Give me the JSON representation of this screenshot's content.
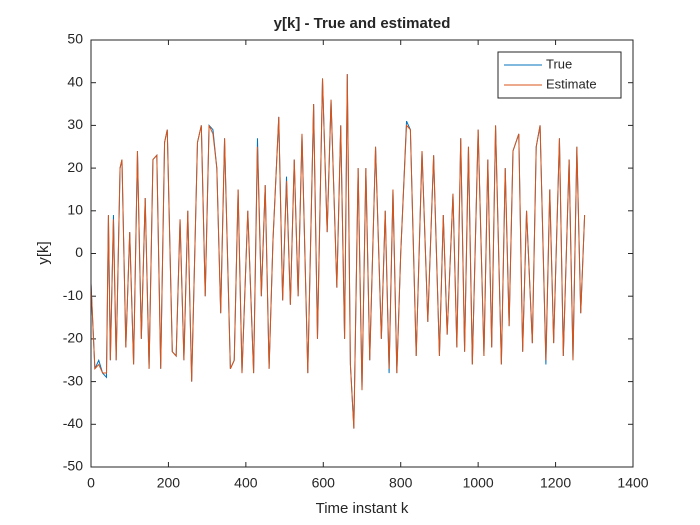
{
  "chart_data": {
    "type": "line",
    "title": "y[k] - True and estimated",
    "xlabel": "Time instant k",
    "ylabel": "y[k]",
    "x": [
      0,
      10,
      20,
      30,
      40,
      45,
      50,
      58,
      65,
      75,
      80,
      90,
      100,
      110,
      120,
      130,
      140,
      150,
      160,
      170,
      180,
      190,
      197,
      210,
      220,
      230,
      240,
      250,
      260,
      275,
      285,
      295,
      305,
      315,
      325,
      335,
      345,
      360,
      370,
      380,
      390,
      405,
      420,
      430,
      440,
      450,
      460,
      470,
      485,
      495,
      505,
      515,
      525,
      535,
      545,
      560,
      575,
      585,
      598,
      610,
      620,
      635,
      645,
      655,
      662,
      670,
      679,
      690,
      700,
      710,
      720,
      735,
      750,
      760,
      770,
      780,
      790,
      800,
      815,
      825,
      840,
      855,
      870,
      885,
      900,
      910,
      920,
      935,
      945,
      955,
      965,
      975,
      985,
      1000,
      1015,
      1025,
      1035,
      1045,
      1060,
      1070,
      1080,
      1090,
      1105,
      1115,
      1125,
      1140,
      1150,
      1160,
      1175,
      1185,
      1195,
      1210,
      1220,
      1235,
      1245,
      1255,
      1265,
      1275
    ],
    "series": [
      {
        "name": "True",
        "color": "#0072bd",
        "values": [
          -7,
          -27,
          -25,
          -28,
          -29,
          9,
          -25,
          9,
          -25,
          20,
          22,
          -22,
          5,
          -26,
          24,
          -20,
          13,
          -27,
          22,
          23,
          -27,
          26,
          29,
          -23,
          -24,
          8,
          -25,
          10,
          -30,
          26,
          30,
          -10,
          30,
          29,
          20,
          -14,
          27,
          -27,
          -25,
          15,
          -28,
          10,
          -28,
          27,
          -10,
          16,
          -27,
          3,
          32,
          -11,
          18,
          -12,
          22,
          -10,
          28,
          -28,
          35,
          -20,
          41,
          5,
          36,
          -8,
          30,
          -20,
          42,
          -26,
          -41,
          20,
          -32,
          20,
          -25,
          25,
          -20,
          10,
          -28,
          15,
          -28,
          0,
          31,
          29,
          -24,
          24,
          -16,
          23,
          -24,
          9,
          -19,
          14,
          -22,
          27,
          -23,
          25,
          -26,
          29,
          -24,
          22,
          -22,
          30,
          -26,
          20,
          -17,
          24,
          28,
          -23,
          10,
          -21,
          25,
          30,
          -26,
          15,
          -21,
          27,
          -24,
          22,
          -25,
          25,
          -14,
          9
        ]
      },
      {
        "name": "Estimate",
        "color": "#d95319",
        "values": [
          -7,
          -27,
          -26,
          -28,
          -28,
          9,
          -25,
          8,
          -25,
          20,
          22,
          -22,
          5,
          -26,
          24,
          -20,
          13,
          -27,
          22,
          23,
          -27,
          26,
          29,
          -23,
          -24,
          8,
          -25,
          10,
          -30,
          26,
          30,
          -10,
          30,
          28,
          20,
          -14,
          27,
          -27,
          -25,
          15,
          -28,
          10,
          -28,
          25,
          -10,
          16,
          -27,
          3,
          32,
          -11,
          17,
          -12,
          22,
          -10,
          28,
          -28,
          35,
          -20,
          41,
          5,
          36,
          -8,
          30,
          -20,
          42,
          -26,
          -41,
          20,
          -32,
          20,
          -25,
          25,
          -20,
          10,
          -27,
          15,
          -28,
          0,
          30,
          29,
          -24,
          24,
          -16,
          23,
          -24,
          9,
          -19,
          14,
          -22,
          27,
          -23,
          25,
          -26,
          29,
          -24,
          22,
          -22,
          30,
          -26,
          20,
          -17,
          24,
          28,
          -23,
          10,
          -21,
          25,
          30,
          -25,
          15,
          -21,
          27,
          -24,
          22,
          -25,
          25,
          -14,
          9
        ]
      }
    ],
    "xlim": [
      0,
      1400
    ],
    "xticks": [
      0,
      200,
      400,
      600,
      800,
      1000,
      1200,
      1400
    ],
    "ylim": [
      -50,
      50
    ],
    "yticks": [
      -50,
      -40,
      -30,
      -20,
      -10,
      0,
      10,
      20,
      30,
      40,
      50
    ],
    "legend": "northeast"
  }
}
